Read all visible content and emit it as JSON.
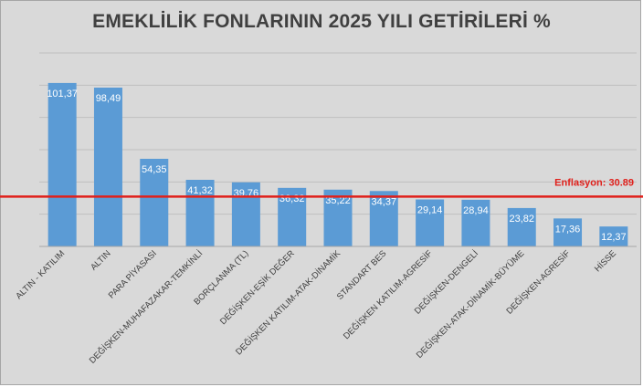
{
  "chart_data": {
    "type": "bar",
    "title": "EMEKLİLİK FONLARININ 2025 YILI GETİRİLERİ %",
    "categories": [
      "ALTIN - KATILIM",
      "ALTIN",
      "PARA PİYASASI",
      "DEĞİŞKEN-MUHAFAZAKAR-TEMKİNLİ",
      "BORÇLANMA (TL)",
      "DEĞİŞKEN-EŞİK DEĞER",
      "DEĞİŞKEN KATILIM-ATAK-DİNAMİK",
      "STANDART BES",
      "DEĞİŞKEN KATILIM-AGRESİF",
      "DEĞİŞKEN-DENGELİ",
      "DEĞİŞKEN-ATAK-DİNAMİK-BÜYÜME",
      "DEĞİŞKEN-AGRESİF",
      "HİSSE"
    ],
    "values": [
      101.37,
      98.49,
      54.35,
      41.32,
      39.76,
      36.32,
      35.22,
      34.37,
      29.14,
      28.94,
      23.82,
      17.36,
      12.37
    ],
    "value_labels": [
      "101,37",
      "98,49",
      "54,35",
      "41,32",
      "39,76",
      "36,32",
      "35,22",
      "34,37",
      "29,14",
      "28,94",
      "23,82",
      "17,36",
      "12,37"
    ],
    "ylim": [
      0,
      120
    ],
    "grid": true,
    "bar_color": "#5b9bd5",
    "reference_line": {
      "label": "Enflasyon: 30.89",
      "value": 30.89,
      "color": "#e0201b"
    }
  }
}
